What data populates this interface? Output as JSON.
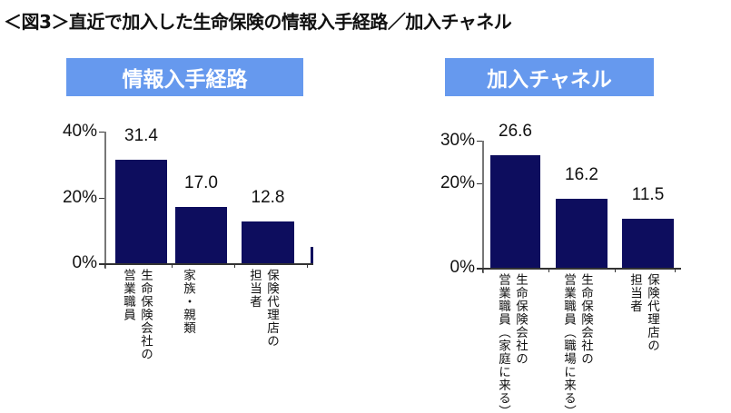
{
  "title": "＜図3＞直近で加入した生命保険の情報入手経路／加入チャネル",
  "colors": {
    "banner": "#6699EE",
    "bar": "#0D0D5E"
  },
  "chart_data": [
    {
      "type": "bar",
      "title": "情報入手経路",
      "categories": [
        [
          "生命保険会社の",
          "営業職員"
        ],
        [
          "家族・親類"
        ],
        [
          "保険代理店の",
          "担当者"
        ]
      ],
      "values": [
        31.4,
        17.0,
        12.8
      ],
      "data_labels": [
        "31.4",
        "17.0",
        "12.8"
      ],
      "yticks": [
        "0%",
        "20%",
        "40%"
      ],
      "ylim": [
        0,
        40
      ],
      "grid": false
    },
    {
      "type": "bar",
      "title": "加入チャネル",
      "categories": [
        [
          "生命保険会社の",
          "営業職員（家庭に来る）"
        ],
        [
          "生命保険会社の",
          "営業職員（職場に来る）"
        ],
        [
          "保険代理店の",
          "担当者"
        ]
      ],
      "values": [
        26.6,
        16.2,
        11.5
      ],
      "data_labels": [
        "26.6",
        "16.2",
        "11.5"
      ],
      "yticks": [
        "0%",
        "20%",
        "30%"
      ],
      "ylim": [
        0,
        30
      ],
      "grid": false
    }
  ]
}
